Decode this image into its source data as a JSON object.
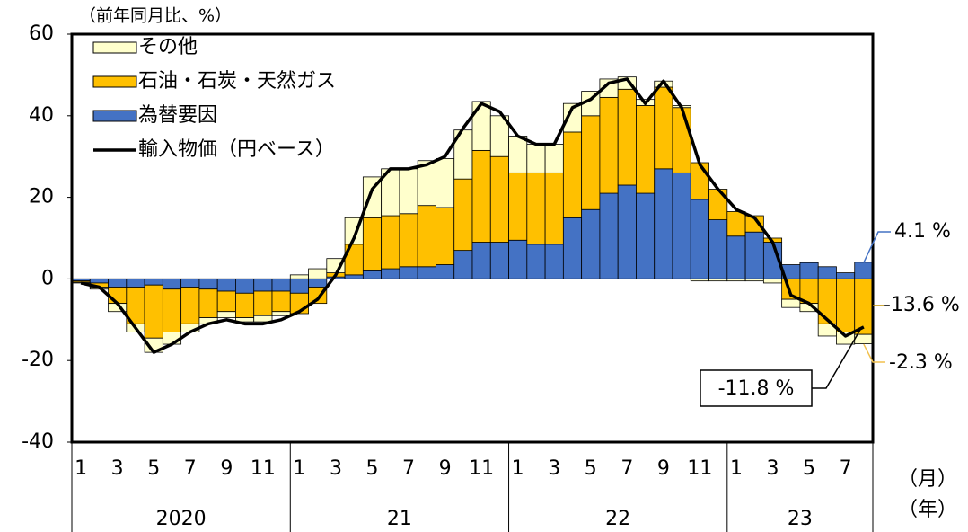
{
  "chart_data": {
    "type": "bar",
    "unit_label": "（前年同月比、%）",
    "x_month_label": "（月）",
    "x_year_label": "（年）",
    "categories": [
      "1",
      null,
      "3",
      null,
      "5",
      null,
      "7",
      null,
      "9",
      null,
      "11",
      null,
      "1",
      null,
      "3",
      null,
      "5",
      null,
      "7",
      null,
      "9",
      null,
      "11",
      null,
      "1",
      null,
      "3",
      null,
      "5",
      null,
      "7",
      null,
      "9",
      null,
      "11",
      null,
      "1",
      null,
      "3",
      null,
      "5",
      null,
      "7",
      null
    ],
    "years": [
      "2020",
      "21",
      "22",
      "23"
    ],
    "stacked": true,
    "series": [
      {
        "name": "その他",
        "type": "bar",
        "color": "#ffffcc",
        "values": [
          -0.2,
          -0.5,
          -2,
          -2,
          -3.5,
          -3,
          -2,
          -1.5,
          -1.5,
          -1,
          -1.5,
          -1,
          1,
          2.5,
          3.5,
          6.5,
          10,
          11.5,
          11,
          11,
          12,
          12,
          12,
          10,
          9,
          7,
          7,
          7,
          6,
          4.5,
          3,
          1.5,
          1.5,
          0.5,
          -0.5,
          -0.5,
          -0.5,
          -0.5,
          -1,
          -2,
          -2,
          -3,
          -3,
          -2.3
        ]
      },
      {
        "name": "石油・石炭・天然ガス",
        "type": "bar",
        "color": "#ffc000",
        "values": [
          -0.3,
          -1,
          -4,
          -9,
          -13,
          -10.5,
          -9,
          -7,
          -5,
          -6,
          -6,
          -5,
          -5,
          -4,
          1,
          7.5,
          13,
          13,
          13,
          15,
          14,
          17.5,
          22.5,
          21,
          16.5,
          17.5,
          17.5,
          21,
          23,
          23.5,
          23.5,
          21.5,
          20,
          16,
          9,
          7.5,
          6,
          4,
          1,
          -5,
          -6,
          -11,
          -13,
          -13.6
        ]
      },
      {
        "name": "為替要因",
        "type": "bar",
        "color": "#4472c4",
        "values": [
          -0.5,
          -1,
          -2,
          -2,
          -1.5,
          -2.5,
          -2,
          -2.5,
          -3,
          -3.5,
          -3,
          -3,
          -3.5,
          -2,
          0.5,
          1,
          2,
          2.5,
          3,
          3,
          3.5,
          7,
          9,
          9,
          9.5,
          8.5,
          8.5,
          15,
          17,
          21,
          23,
          21,
          27,
          26,
          19.5,
          14.5,
          10.5,
          11.5,
          9,
          3.5,
          4,
          3,
          1.5,
          4.1
        ]
      },
      {
        "name": "輸入物価（円ベース）",
        "type": "line",
        "color": "#000000",
        "values": [
          -1,
          -2,
          -6,
          -12,
          -18,
          -16,
          -13,
          -11,
          -10,
          -11,
          -11,
          -10,
          -8,
          -5,
          1,
          10,
          22,
          27,
          27,
          28,
          30,
          37,
          43,
          41,
          35,
          33,
          33,
          42,
          44,
          48,
          49,
          43,
          48.5,
          42,
          28,
          22,
          17,
          15,
          9,
          -4,
          -6,
          -10,
          -14,
          -11.8
        ]
      }
    ],
    "annotations": [
      {
        "text": "4.1 %",
        "color": "#4472c4"
      },
      {
        "text": "-13.6 %",
        "color": "#bf8f00"
      },
      {
        "text": "-2.3 %",
        "color": "#f2c14e"
      },
      {
        "text": "-11.8 %",
        "color": "#000000"
      }
    ],
    "ylim": [
      -40,
      60
    ],
    "yticks": [
      -40,
      -20,
      0,
      20,
      40,
      60
    ],
    "legend": "upper left"
  }
}
